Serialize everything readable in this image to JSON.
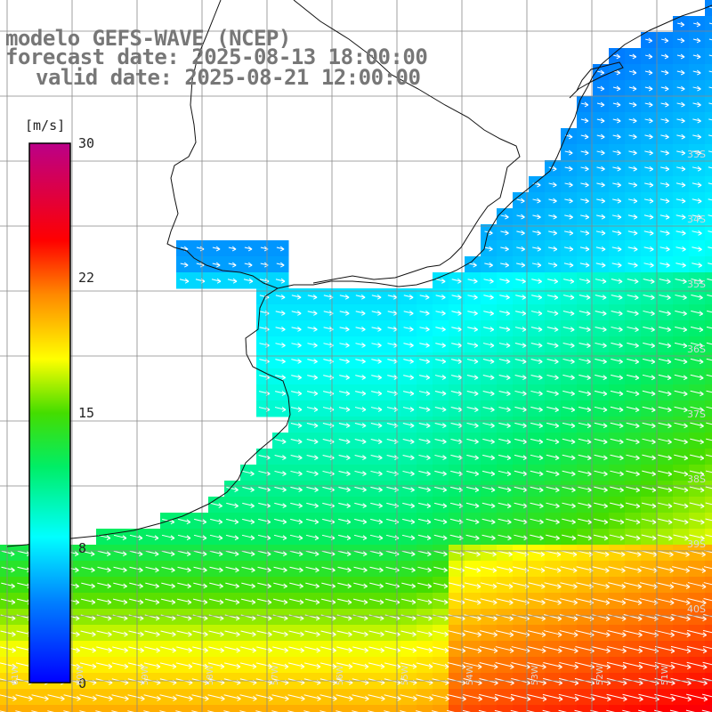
{
  "title": {
    "line1": "modelo GEFS-WAVE (NCEP)",
    "line2": "forecast date: 2025-08-13 18:00:00",
    "line3": "valid date: 2025-08-21 12:00:00"
  },
  "colorbar": {
    "unit": "[m/s]",
    "ticks": [
      "30",
      "22",
      "15",
      "8",
      "0"
    ],
    "colors": [
      "#0000ff",
      "#0088ff",
      "#00ffff",
      "#00ff80",
      "#00cc00",
      "#88ee00",
      "#ffff00",
      "#ffaa00",
      "#ff6600",
      "#ff0000",
      "#cc0044",
      "#bb0088"
    ]
  },
  "lat_labels": [
    "33S",
    "34S",
    "35S",
    "36S",
    "37S",
    "38S",
    "39S",
    "40S"
  ],
  "lon_labels": [
    "61W",
    "60W",
    "59W",
    "58W",
    "57W",
    "56W",
    "55W",
    "54W",
    "53W",
    "52W",
    "51W"
  ],
  "colors": {
    "land": "#ffffff",
    "coast": "#111111",
    "grid": "#888888",
    "arrows": "#ffffff"
  }
}
